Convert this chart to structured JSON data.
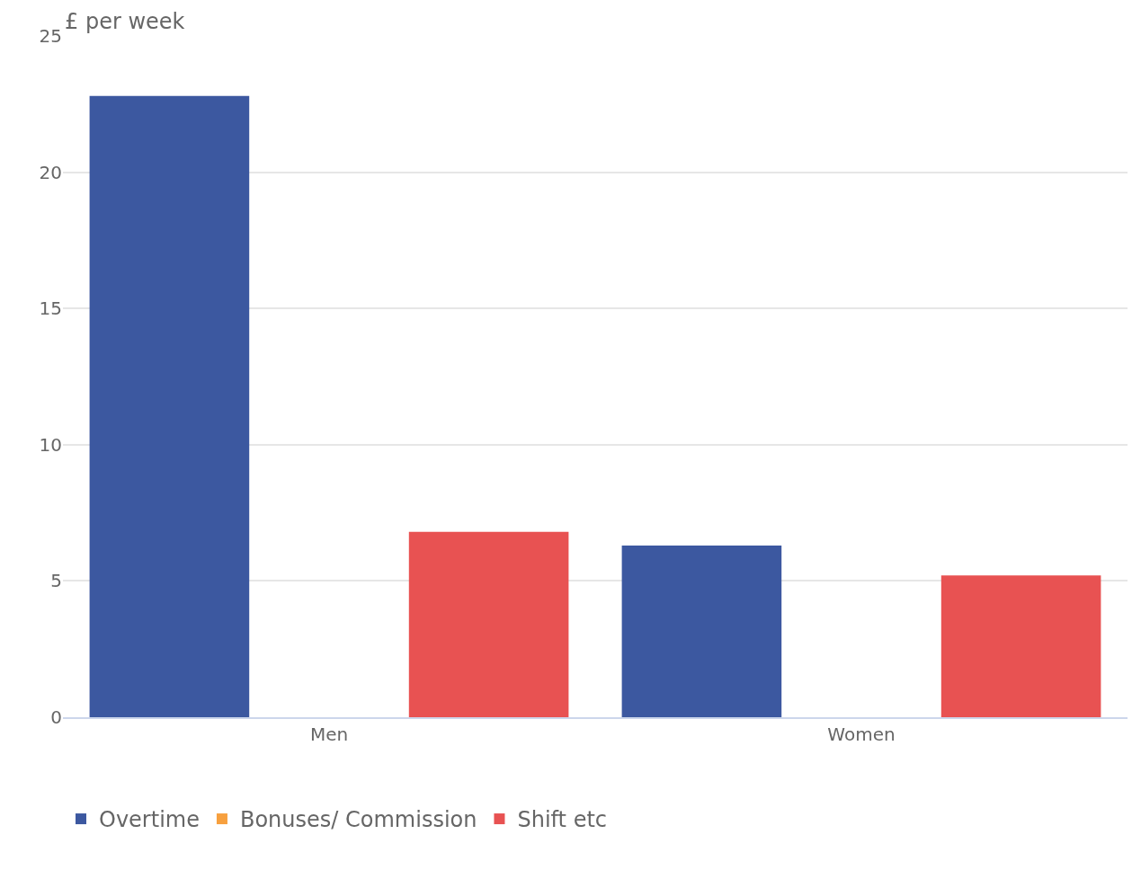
{
  "chart_data": {
    "type": "bar",
    "ylabel": "£ per week",
    "categories": [
      "Men",
      "Women"
    ],
    "series": [
      {
        "name": "Overtime",
        "color": "#3c58a0",
        "values": [
          22.8,
          6.3
        ]
      },
      {
        "name": "Bonuses/ Commission",
        "color": "#f7a03e",
        "values": [
          null,
          null
        ]
      },
      {
        "name": "Shift etc",
        "color": "#e85252",
        "values": [
          6.8,
          5.2
        ]
      }
    ],
    "ylim": [
      0,
      25
    ],
    "yticks": [
      0,
      5,
      10,
      15,
      20,
      25
    ],
    "grid": "y",
    "legend": "bottom left"
  }
}
